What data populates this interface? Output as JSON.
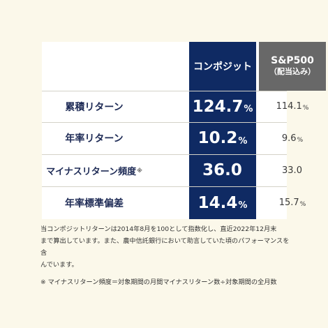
{
  "header": {
    "composite": "コンポジット",
    "sp_line1": "S&P500",
    "sp_line2": "（配当込み）"
  },
  "rows": [
    {
      "label": "累積リターン",
      "composite": "124.7",
      "composite_unit": "%",
      "sp": "114.1",
      "sp_unit": "%"
    },
    {
      "label": "年率リターン",
      "composite": "10.2",
      "composite_unit": "%",
      "sp": "9.6",
      "sp_unit": "%"
    },
    {
      "label": "マイナスリターン頻度",
      "label_mark": "※",
      "composite": "36.0",
      "composite_unit": "",
      "sp": "33.0",
      "sp_unit": ""
    },
    {
      "label": "年率標準偏差",
      "composite": "14.4",
      "composite_unit": "%",
      "sp": "15.7",
      "sp_unit": "%"
    }
  ],
  "notes": {
    "line1": "当コンポジットリターンは2014年8月を100として指数化し、直近2022年12月末",
    "line2": "まで算出しています。また、農中信託銀行において助言していた頃のパフォーマンスを含",
    "line3": "んでいます。",
    "footnote": "※ マイナスリターン頻度＝対象期間の月間マイナスリターン数÷対象期間の全月数"
  },
  "colors": {
    "background": "#fbf8ea",
    "composite_column": "#0f2a63",
    "sp_header": "#686868",
    "label_text": "#1d2a55"
  }
}
